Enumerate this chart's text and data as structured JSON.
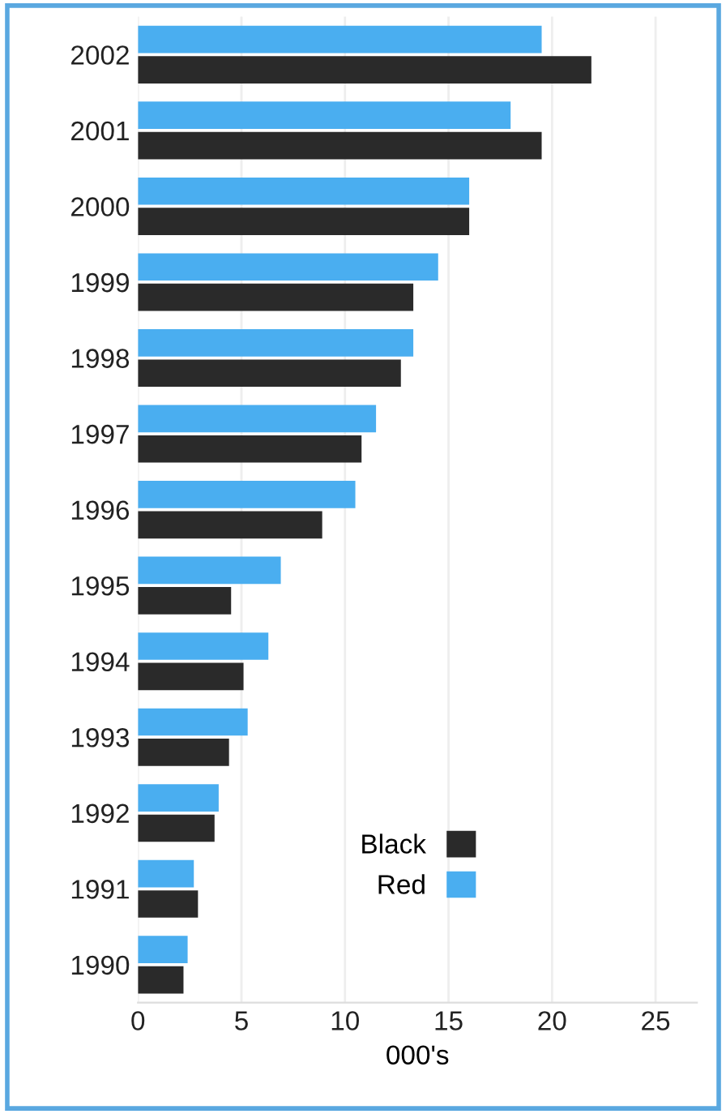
{
  "chart_data": {
    "type": "bar",
    "orientation": "horizontal",
    "xlabel": "000's",
    "categories": [
      "2002",
      "2001",
      "2000",
      "1999",
      "1998",
      "1997",
      "1996",
      "1995",
      "1994",
      "1993",
      "1992",
      "1991",
      "1990"
    ],
    "series": [
      {
        "name": "Red",
        "color": "#4aaef0",
        "values": [
          19.5,
          18.0,
          16.0,
          14.5,
          13.3,
          11.5,
          10.5,
          6.9,
          6.3,
          5.3,
          3.9,
          2.7,
          2.4
        ]
      },
      {
        "name": "Black",
        "color": "#2a2a2a",
        "values": [
          21.9,
          19.5,
          16.0,
          13.3,
          12.7,
          10.8,
          8.9,
          4.5,
          5.1,
          4.4,
          3.7,
          2.9,
          2.2
        ]
      }
    ],
    "xlim": [
      0,
      27
    ],
    "xticks": [
      0,
      5,
      10,
      15,
      20,
      25
    ],
    "grid": "x",
    "legend": "bottom"
  }
}
